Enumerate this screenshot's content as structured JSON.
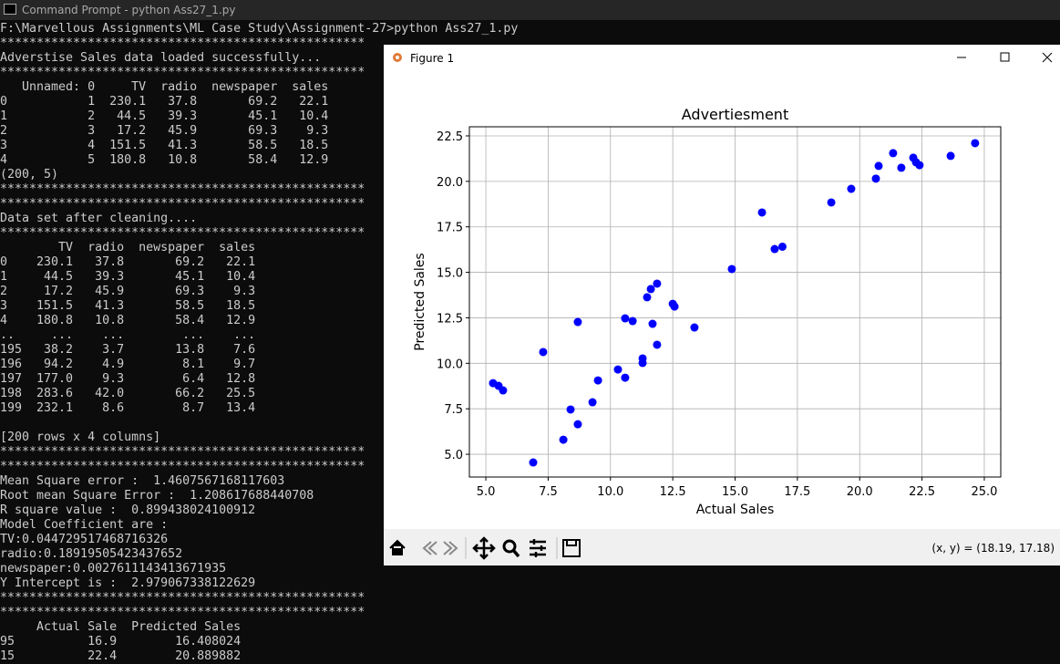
{
  "console": {
    "title": "Command Prompt - python  Ass27_1.py",
    "blocks": [
      [
        "F:\\Marvellous Assignments\\ML Case Study\\Assignment-27>python Ass27_1.py",
        "**************************************************",
        "Adverstise Sales data loaded successfully...",
        "**************************************************",
        "   Unnamed: 0     TV  radio  newspaper  sales",
        "0           1  230.1   37.8       69.2   22.1",
        "1           2   44.5   39.3       45.1   10.4",
        "2           3   17.2   45.9       69.3    9.3",
        "3           4  151.5   41.3       58.5   18.5",
        "4           5  180.8   10.8       58.4   12.9",
        "(200, 5)",
        "**************************************************",
        "**************************************************",
        "Data set after cleaning....",
        "**************************************************",
        "        TV  radio  newspaper  sales",
        "0    230.1   37.8       69.2   22.1",
        "1     44.5   39.3       45.1   10.4",
        "2     17.2   45.9       69.3    9.3",
        "3    151.5   41.3       58.5   18.5",
        "4    180.8   10.8       58.4   12.9",
        "..     ...    ...        ...    ...",
        "195   38.2    3.7       13.8    7.6",
        "196   94.2    4.9        8.1    9.7",
        "197  177.0    9.3        6.4   12.8",
        "198  283.6   42.0       66.2   25.5",
        "199  232.1    8.6        8.7   13.4"
      ],
      [
        "[200 rows x 4 columns]",
        "**************************************************",
        "**************************************************",
        "Mean Square error :  1.4607567168117603",
        "Root mean Square Error :  1.208617688440708",
        "R square value :  0.899438024100912",
        "Model Coefficient are :",
        "TV:0.044729517468716326",
        "radio:0.18919505423437652",
        "newspaper:0.0027611143413671935",
        "Y Intercept is :  2.979067338122629",
        "**************************************************",
        "**************************************************",
        "     Actual Sale  Predicted Sales",
        "95          16.9        16.408024",
        "15          22.4        20.889882"
      ]
    ]
  },
  "figure_window": {
    "title": "Figure 1",
    "status": "(x, y) = (18.19, 17.18)"
  },
  "chart_data": {
    "type": "scatter",
    "title": "Advertiesment",
    "x_label": "Actual Sales",
    "y_label": "Predicted Sales",
    "color": "#0000ff",
    "grid": true,
    "x": [
      5.29,
      5.51,
      5.69,
      6.9,
      7.3,
      8.11,
      8.4,
      8.69,
      8.69,
      9.28,
      9.5,
      10.3,
      10.59,
      10.59,
      10.89,
      11.29,
      11.29,
      11.47,
      11.62,
      11.69,
      11.87,
      11.87,
      12.5,
      12.57,
      13.37,
      14.87,
      16.08,
      16.59,
      16.9,
      18.86,
      19.66,
      20.65,
      20.76,
      21.34,
      21.67,
      22.15,
      22.26,
      22.4,
      23.65,
      24.63
    ],
    "values": [
      8.91,
      8.76,
      8.51,
      4.55,
      10.62,
      5.8,
      7.46,
      12.27,
      6.65,
      7.86,
      9.06,
      9.66,
      9.21,
      12.47,
      12.32,
      10.27,
      10.02,
      13.63,
      14.08,
      12.17,
      14.38,
      11.02,
      13.27,
      13.12,
      11.97,
      15.18,
      18.29,
      16.28,
      16.41,
      18.84,
      19.59,
      20.15,
      20.85,
      21.55,
      20.75,
      21.3,
      21.05,
      20.89,
      21.4,
      22.1
    ],
    "xlim": [
      4.34,
      25.66
    ],
    "ylim": [
      3.75,
      23.0
    ],
    "xticks": [
      {
        "value": 5,
        "label": "5.0"
      },
      {
        "value": 7.5,
        "label": "7.5"
      },
      {
        "value": 10,
        "label": "10.0"
      },
      {
        "value": 12.5,
        "label": "12.5"
      },
      {
        "value": 15,
        "label": "15.0"
      },
      {
        "value": 17.5,
        "label": "17.5"
      },
      {
        "value": 20,
        "label": "20.0"
      },
      {
        "value": 22.5,
        "label": "22.5"
      },
      {
        "value": 25,
        "label": "25.0"
      }
    ],
    "yticks": [
      {
        "value": 5,
        "label": "5.0"
      },
      {
        "value": 7.5,
        "label": "7.5"
      },
      {
        "value": 10,
        "label": "10.0"
      },
      {
        "value": 12.5,
        "label": "12.5"
      },
      {
        "value": 15,
        "label": "15.0"
      },
      {
        "value": 17.5,
        "label": "17.5"
      },
      {
        "value": 20,
        "label": "20.0"
      },
      {
        "value": 22.5,
        "label": "22.5"
      }
    ]
  }
}
